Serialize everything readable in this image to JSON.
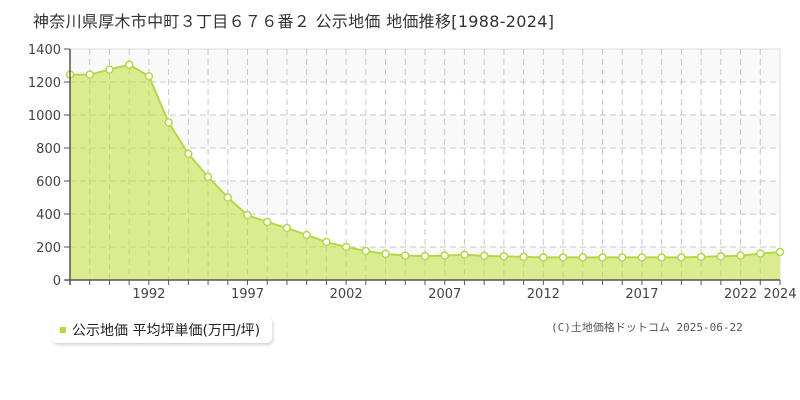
{
  "page": {
    "title": "神奈川県厚木市中町３丁目６７６番２ 公示地価 地価推移[1988-2024]",
    "copyright": "(C)土地価格ドットコム 2025-06-22"
  },
  "legend": {
    "label": "公示地価 平均坪単価(万円/坪)",
    "color": "#b5d84a"
  },
  "colors": {
    "fill": "#dbeb8f",
    "line": "#b5d84a",
    "marker_fill": "#ffffff",
    "grid": "#c8c8c8",
    "band": "#faf9f9",
    "axis": "#555555"
  },
  "chart_data": {
    "type": "area",
    "title": "神奈川県厚木市中町３丁目６７６番２ 公示地価 地価推移[1988-2024]",
    "xlabel": "",
    "ylabel": "",
    "series": [
      {
        "name": "公示地価 平均坪単価(万円/坪)",
        "x": [
          1988,
          1989,
          1990,
          1991,
          1992,
          1993,
          1994,
          1995,
          1996,
          1997,
          1998,
          1999,
          2000,
          2001,
          2002,
          2003,
          2004,
          2005,
          2006,
          2007,
          2008,
          2009,
          2010,
          2011,
          2012,
          2013,
          2014,
          2015,
          2016,
          2017,
          2018,
          2019,
          2020,
          2021,
          2022,
          2023,
          2024
        ],
        "values": [
          1245,
          1245,
          1275,
          1305,
          1235,
          955,
          765,
          625,
          500,
          393,
          352,
          315,
          273,
          230,
          200,
          176,
          158,
          148,
          145,
          148,
          153,
          146,
          143,
          140,
          137,
          137,
          137,
          137,
          137,
          137,
          137,
          137,
          140,
          143,
          148,
          160,
          170
        ]
      }
    ],
    "x_ticks": [
      "1992",
      "1997",
      "2002",
      "2007",
      "2012",
      "2017",
      "2022",
      "2024"
    ],
    "y_ticks": [
      "0",
      "200",
      "400",
      "600",
      "800",
      "1000",
      "1200",
      "1400"
    ],
    "xlim": [
      1988,
      2024
    ],
    "ylim": [
      0,
      1400
    ],
    "grid": true,
    "legend_position": "bottom-left"
  }
}
